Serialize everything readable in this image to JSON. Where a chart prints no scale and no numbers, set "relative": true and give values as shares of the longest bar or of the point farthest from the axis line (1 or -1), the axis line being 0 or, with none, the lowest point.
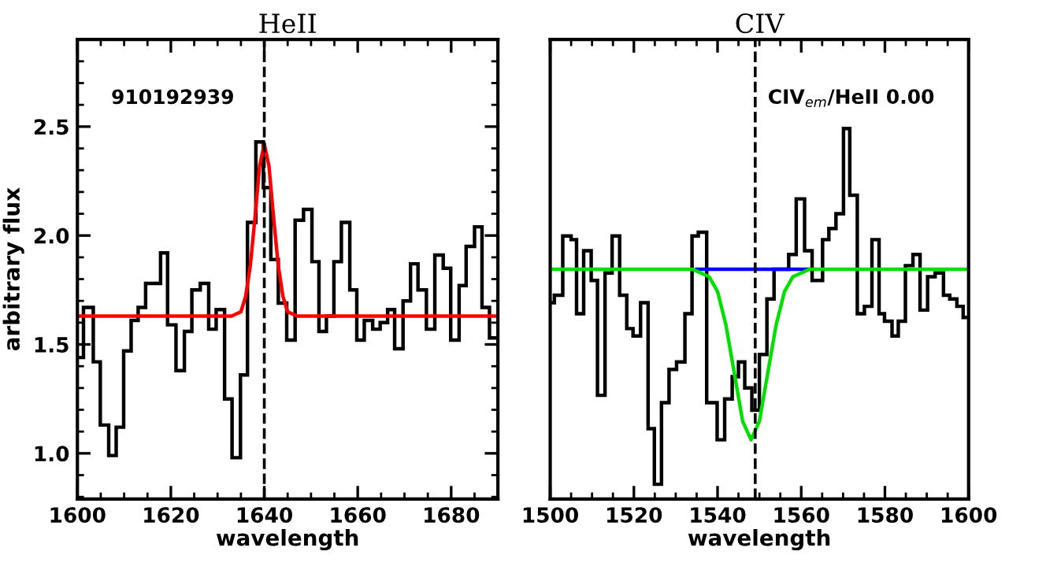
{
  "chart_data": [
    {
      "type": "histogram",
      "title": "HeII",
      "xlabel": "wavelength",
      "ylabel": "arbitrary flux",
      "annotations": [
        "910192939"
      ],
      "xlim": [
        1600,
        1690
      ],
      "xticks": [
        1600,
        1620,
        1640,
        1660,
        1680
      ],
      "ylim": [
        0.79,
        2.9
      ],
      "yticks": [
        {
          "value": 1,
          "label": "1.0"
        },
        1.5,
        {
          "value": 2,
          "label": "2.0"
        },
        2.5
      ],
      "ref_lines": [
        {
          "axis": "x",
          "value": 1640,
          "color": "#000000",
          "line_style": "dashed"
        }
      ],
      "grid": false,
      "series": [
        {
          "color": "#000000",
          "bins": [
            1600.0,
            1601.3,
            1603.4,
            1604.9,
            1606.7,
            1608.3,
            1609.9,
            1611.5,
            1613.0,
            1614.6,
            1616.2,
            1617.8,
            1619.3,
            1621.1,
            1622.9,
            1624.5,
            1626.3,
            1628.1,
            1629.7,
            1631.5,
            1633.1,
            1634.9,
            1636.4,
            1638.2,
            1639.8,
            1641.4,
            1643.0,
            1644.8,
            1646.6,
            1648.4,
            1650.2,
            1651.7,
            1653.3,
            1654.9,
            1656.5,
            1658.3,
            1659.8,
            1661.4,
            1663.2,
            1664.8,
            1666.4,
            1667.9,
            1669.7,
            1671.3,
            1672.9,
            1674.7,
            1676.5,
            1678.3,
            1679.9,
            1681.7,
            1683.2,
            1685.0,
            1686.6,
            1688.2,
            1690.0
          ],
          "values": [
            1.44,
            1.67,
            1.42,
            1.13,
            0.99,
            1.12,
            1.47,
            1.61,
            1.67,
            1.78,
            1.78,
            1.92,
            1.59,
            1.38,
            1.56,
            1.75,
            1.78,
            1.57,
            1.66,
            1.25,
            0.98,
            1.36,
            2.06,
            2.43,
            2.22,
            1.89,
            1.69,
            1.52,
            2.07,
            2.12,
            1.88,
            1.56,
            1.63,
            1.88,
            2.06,
            1.75,
            1.52,
            1.61,
            1.57,
            1.6,
            1.66,
            1.48,
            1.7,
            1.87,
            1.75,
            1.57,
            1.91,
            1.85,
            1.52,
            1.77,
            1.95,
            2.04,
            1.67,
            1.53
          ]
        },
        {
          "type": "line",
          "color": "#ff0000",
          "x": [
            1600,
            1633,
            1634,
            1635,
            1636,
            1637,
            1638,
            1639,
            1640,
            1641,
            1642,
            1643,
            1644,
            1645,
            1646,
            1647,
            1690
          ],
          "values": [
            1.63,
            1.63,
            1.64,
            1.65,
            1.72,
            1.86,
            2.08,
            2.32,
            2.42,
            2.32,
            2.08,
            1.86,
            1.72,
            1.65,
            1.64,
            1.63,
            1.63
          ]
        }
      ]
    },
    {
      "type": "histogram",
      "title": "CIV",
      "xlabel": "wavelength",
      "relative": true,
      "annotations": [
        "CIV$_{em}$/HeII 0.00"
      ],
      "xlim": [
        1500,
        1600
      ],
      "xticks": [
        1500,
        1520,
        1540,
        1560,
        1580,
        1600
      ],
      "ref_lines": [
        {
          "axis": "x",
          "value": 1549,
          "color": "#000000",
          "line_style": "dashed"
        }
      ],
      "grid": false,
      "series": [
        {
          "color": "#000000",
          "bins": [
            1500.0,
            1501.0,
            1503.0,
            1505.0,
            1506.3,
            1508.0,
            1509.8,
            1511.3,
            1513.1,
            1514.8,
            1516.6,
            1518.3,
            1519.8,
            1521.6,
            1523.4,
            1524.9,
            1526.6,
            1528.4,
            1530.2,
            1532.2,
            1533.9,
            1535.4,
            1537.4,
            1539.9,
            1541.7,
            1543.5,
            1545.0,
            1546.5,
            1548.2,
            1550.0,
            1551.8,
            1553.5,
            1555.3,
            1557.0,
            1558.8,
            1560.8,
            1562.6,
            1565.1,
            1566.6,
            1568.3,
            1570.1,
            1571.6,
            1573.4,
            1575.1,
            1576.9,
            1578.6,
            1579.9,
            1581.7,
            1583.2,
            1584.9,
            1586.7,
            1588.4,
            1590.2,
            1592.0,
            1594.0,
            1595.5,
            1597.2,
            1598.7,
            1600.0
          ],
          "values": [
            0.53,
            0.55,
            0.71,
            0.7,
            0.5,
            0.67,
            0.59,
            0.28,
            0.61,
            0.71,
            0.55,
            0.46,
            0.44,
            0.53,
            0.19,
            0.04,
            0.26,
            0.35,
            0.37,
            0.5,
            0.71,
            0.72,
            0.26,
            0.16,
            0.27,
            0.33,
            0.37,
            0.3,
            0.24,
            0.39,
            0.54,
            0.62,
            0.62,
            0.66,
            0.81,
            0.67,
            0.59,
            0.7,
            0.73,
            0.77,
            1,
            0.82,
            0.5,
            0.52,
            0.7,
            0.5,
            0.48,
            0.44,
            0.48,
            0.63,
            0.66,
            0.51,
            0.6,
            0.61,
            0.55,
            0.54,
            0.52,
            0.49
          ]
        },
        {
          "type": "line",
          "color": "#0000ff",
          "x": [
            1535,
            1562
          ],
          "values": [
            0.62,
            0.62
          ]
        },
        {
          "type": "line",
          "color": "#00e000",
          "x": [
            1500,
            1534,
            1536,
            1538,
            1540,
            1542,
            1544,
            1546,
            1548,
            1550,
            1552,
            1554,
            1556,
            1558,
            1560,
            1562,
            1600
          ],
          "values": [
            0.62,
            0.62,
            0.61,
            0.6,
            0.56,
            0.47,
            0.34,
            0.21,
            0.16,
            0.21,
            0.34,
            0.47,
            0.56,
            0.6,
            0.61,
            0.62,
            0.62
          ]
        }
      ]
    }
  ]
}
